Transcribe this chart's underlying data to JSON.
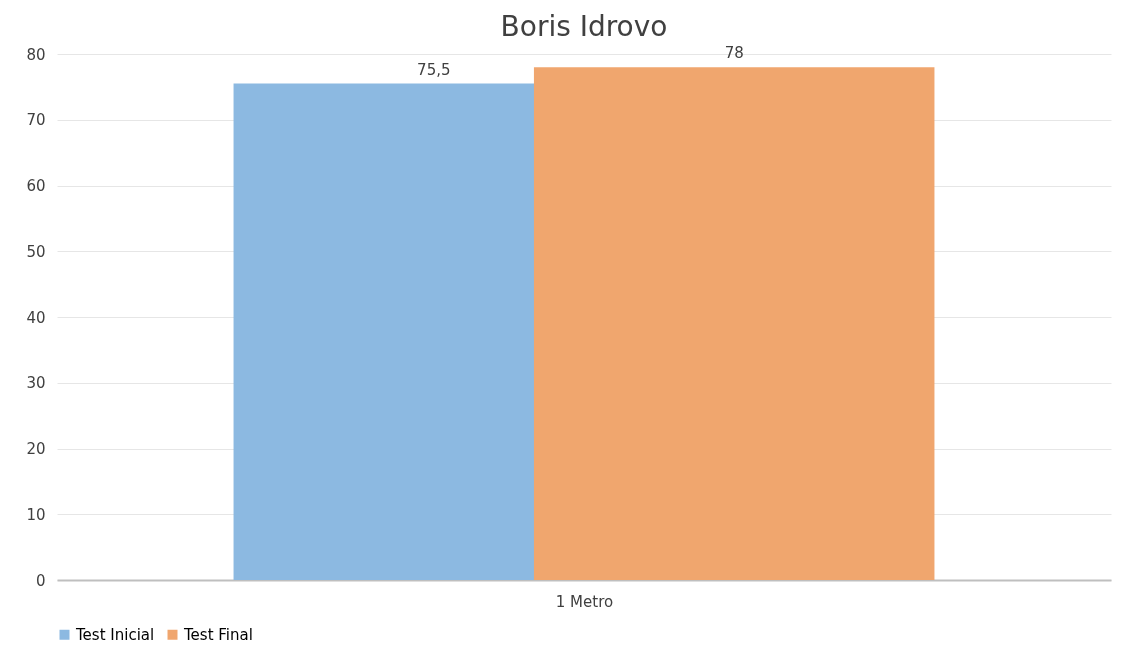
{
  "chart_data": {
    "type": "bar",
    "title": "Boris Idrovo",
    "categories": [
      "1 Metro"
    ],
    "series": [
      {
        "name": "Test Inicial",
        "color": "#8cb9e1",
        "values": [
          75.5
        ],
        "value_labels": [
          "75,5"
        ]
      },
      {
        "name": "Test Final",
        "color": "#f0a66e",
        "values": [
          78
        ],
        "value_labels": [
          "78"
        ]
      }
    ],
    "ylim": [
      0,
      80
    ],
    "yticks": [
      0,
      10,
      20,
      30,
      40,
      50,
      60,
      70,
      80
    ],
    "grid": "y",
    "legend": "bottom"
  }
}
